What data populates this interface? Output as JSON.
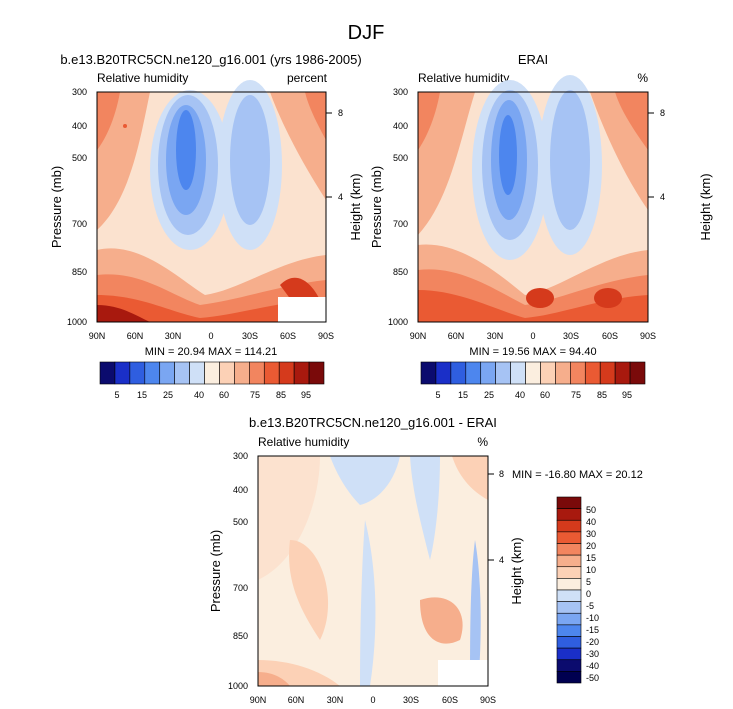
{
  "page_title": "DJF",
  "chart_data": [
    {
      "type": "heatmap",
      "title": "b.e13.B20TRC5CN.ne120_g16.001 (yrs 1986-2005)",
      "left_label": "Relative humidity",
      "right_label": "percent",
      "ylabel": "Pressure (mb)",
      "y2label": "Height (km)",
      "x_ticks": [
        "90N",
        "60N",
        "30N",
        "0",
        "30S",
        "60S",
        "90S"
      ],
      "y_ticks": [
        "300",
        "400",
        "500",
        "700",
        "850",
        "1000"
      ],
      "y2_ticks": [
        "8",
        "4"
      ],
      "stats": "MIN = 20.94  MAX = 114.21",
      "colorbar_labels": [
        "5",
        "15",
        "25",
        "40",
        "60",
        "75",
        "85",
        "95"
      ]
    },
    {
      "type": "heatmap",
      "title": "ERAI",
      "left_label": "Relative humidity",
      "right_label": "%",
      "ylabel": "Pressure (mb)",
      "y2label": "Height (km)",
      "x_ticks": [
        "90N",
        "60N",
        "30N",
        "0",
        "30S",
        "60S",
        "90S"
      ],
      "y_ticks": [
        "300",
        "400",
        "500",
        "700",
        "850",
        "1000"
      ],
      "y2_ticks": [
        "8",
        "4"
      ],
      "stats": "MIN = 19.56  MAX = 94.40",
      "colorbar_labels": [
        "5",
        "15",
        "25",
        "40",
        "60",
        "75",
        "85",
        "95"
      ]
    },
    {
      "type": "heatmap",
      "title": "b.e13.B20TRC5CN.ne120_g16.001 - ERAI",
      "left_label": "Relative humidity",
      "right_label": "%",
      "ylabel": "Pressure (mb)",
      "y2label": "Height (km)",
      "x_ticks": [
        "90N",
        "60N",
        "30N",
        "0",
        "30S",
        "60S",
        "90S"
      ],
      "y_ticks": [
        "300",
        "400",
        "500",
        "700",
        "850",
        "1000"
      ],
      "y2_ticks": [
        "8",
        "4"
      ],
      "stats": "MIN = -16.80  MAX = 20.12",
      "colorbar_labels": [
        "50",
        "40",
        "30",
        "20",
        "15",
        "10",
        "5",
        "0",
        "-5",
        "-10",
        "-15",
        "-20",
        "-30",
        "-40",
        "-50"
      ]
    }
  ],
  "colors": {
    "abs_scale": [
      "#0b0b6e",
      "#1a2fc8",
      "#2f5ee0",
      "#4d86ee",
      "#7aa6f2",
      "#a6c3f4",
      "#cfe0f7",
      "#fbeedf",
      "#fcd1b6",
      "#f6ae8c",
      "#f2855f",
      "#ea5a33",
      "#d53a1c",
      "#a8190e",
      "#7a0a0a"
    ],
    "diff_scale": [
      "#7a0a0a",
      "#a8190e",
      "#d53a1c",
      "#ea5a33",
      "#f2855f",
      "#f6ae8c",
      "#fcd1b6",
      "#fbeedf",
      "#cfe0f7",
      "#a6c3f4",
      "#7aa6f2",
      "#4d86ee",
      "#2f5ee0",
      "#1a2fc8",
      "#0b0b6e",
      "#000050"
    ]
  }
}
